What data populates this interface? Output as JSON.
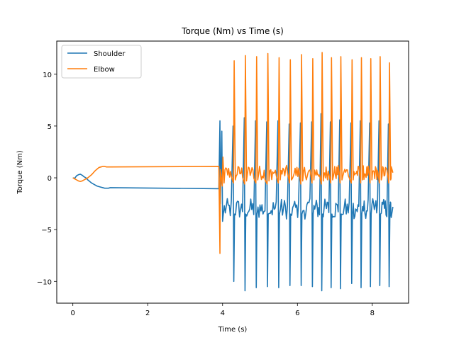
{
  "chart_data": {
    "type": "line",
    "title": "Torque (Nm) vs Time (s)",
    "xlabel": "Time (s)",
    "ylabel": "Torque (Nm)",
    "xlim": [
      -0.43,
      8.97
    ],
    "ylim": [
      -12.1,
      13.2
    ],
    "xticks": [
      0,
      2,
      4,
      6,
      8
    ],
    "yticks": [
      -10,
      -5,
      0,
      5,
      10
    ],
    "grid": false,
    "legend_position": "upper-left",
    "series": [
      {
        "name": "Shoulder",
        "color": "#1f77b4",
        "x": [
          0.0,
          0.05,
          0.1,
          0.15,
          0.2,
          0.25,
          0.3,
          0.35,
          0.4,
          0.45,
          0.5,
          0.55,
          0.6,
          0.65,
          0.7,
          0.75,
          0.8,
          0.85,
          0.9,
          0.95,
          1.0,
          3.9
        ],
        "y": [
          0.0,
          -0.05,
          0.2,
          0.3,
          0.35,
          0.25,
          0.1,
          0.0,
          -0.2,
          -0.35,
          -0.5,
          -0.6,
          -0.7,
          -0.8,
          -0.85,
          -0.9,
          -0.95,
          -1.0,
          -1.0,
          -1.0,
          -0.95,
          -1.05
        ]
      },
      {
        "name": "Elbow",
        "color": "#ff7f0e",
        "x": [
          0.0,
          0.05,
          0.1,
          0.15,
          0.2,
          0.25,
          0.3,
          0.35,
          0.4,
          0.45,
          0.5,
          0.55,
          0.6,
          0.65,
          0.7,
          0.75,
          0.8,
          0.85,
          0.9,
          0.95,
          1.0,
          3.9
        ],
        "y": [
          0.0,
          -0.1,
          -0.2,
          -0.3,
          -0.35,
          -0.3,
          -0.2,
          -0.1,
          0.0,
          0.15,
          0.3,
          0.5,
          0.7,
          0.85,
          1.0,
          1.05,
          1.1,
          1.1,
          1.05,
          1.05,
          1.05,
          1.1
        ]
      }
    ],
    "oscillation": {
      "start": 3.93,
      "end": 8.55,
      "first_spike": {
        "time": 3.93,
        "shoulder": 5.5,
        "elbow": -7.3
      },
      "cycles": [
        {
          "t": 4.0,
          "shoulder_peak": 4.5,
          "shoulder_trough": -4.2,
          "elbow_peak": 2.0,
          "elbow_low": -0.5
        },
        {
          "t": 4.3,
          "shoulder_peak": 5.0,
          "shoulder_trough": -10.0,
          "elbow_peak": 11.3,
          "elbow_low": -0.2
        },
        {
          "t": 4.6,
          "shoulder_peak": 5.8,
          "shoulder_trough": -10.9,
          "elbow_peak": 11.8,
          "elbow_low": -0.3
        },
        {
          "t": 4.9,
          "shoulder_peak": 5.5,
          "shoulder_trough": -10.6,
          "elbow_peak": 11.7,
          "elbow_low": -0.2
        },
        {
          "t": 5.2,
          "shoulder_peak": 5.4,
          "shoulder_trough": -10.5,
          "elbow_peak": 12.0,
          "elbow_low": -0.3
        },
        {
          "t": 5.5,
          "shoulder_peak": 5.5,
          "shoulder_trough": -10.6,
          "elbow_peak": 11.6,
          "elbow_low": -0.2
        },
        {
          "t": 5.8,
          "shoulder_peak": 5.2,
          "shoulder_trough": -10.4,
          "elbow_peak": 11.4,
          "elbow_low": -0.2
        },
        {
          "t": 6.1,
          "shoulder_peak": 5.3,
          "shoulder_trough": -10.4,
          "elbow_peak": 11.9,
          "elbow_low": -0.3
        },
        {
          "t": 6.4,
          "shoulder_peak": 5.4,
          "shoulder_trough": -10.5,
          "elbow_peak": 11.5,
          "elbow_low": -0.2
        },
        {
          "t": 6.65,
          "shoulder_peak": 6.2,
          "shoulder_trough": -10.9,
          "elbow_peak": 12.1,
          "elbow_low": -0.3
        },
        {
          "t": 6.9,
          "shoulder_peak": 5.4,
          "shoulder_trough": -10.6,
          "elbow_peak": 11.6,
          "elbow_low": -0.2
        },
        {
          "t": 7.15,
          "shoulder_peak": 5.6,
          "shoulder_trough": -10.7,
          "elbow_peak": 11.7,
          "elbow_low": -0.2
        },
        {
          "t": 7.45,
          "shoulder_peak": 5.3,
          "shoulder_trough": -10.2,
          "elbow_peak": 11.4,
          "elbow_low": -0.2
        },
        {
          "t": 7.7,
          "shoulder_peak": 5.5,
          "shoulder_trough": -10.6,
          "elbow_peak": 11.6,
          "elbow_low": -0.2
        },
        {
          "t": 7.95,
          "shoulder_peak": 5.3,
          "shoulder_trough": -10.5,
          "elbow_peak": 11.5,
          "elbow_low": -0.2
        },
        {
          "t": 8.2,
          "shoulder_peak": 5.5,
          "shoulder_trough": -10.4,
          "elbow_peak": 11.7,
          "elbow_low": -0.2
        },
        {
          "t": 8.45,
          "shoulder_peak": 5.2,
          "shoulder_trough": -10.5,
          "elbow_peak": 11.1,
          "elbow_low": -0.2
        }
      ],
      "shoulder_baseline_range": [
        -4.0,
        -2.0
      ],
      "elbow_baseline_range": [
        -0.2,
        1.2
      ],
      "final": {
        "time": 8.55,
        "shoulder": -2.8,
        "elbow": 0.5
      }
    }
  }
}
